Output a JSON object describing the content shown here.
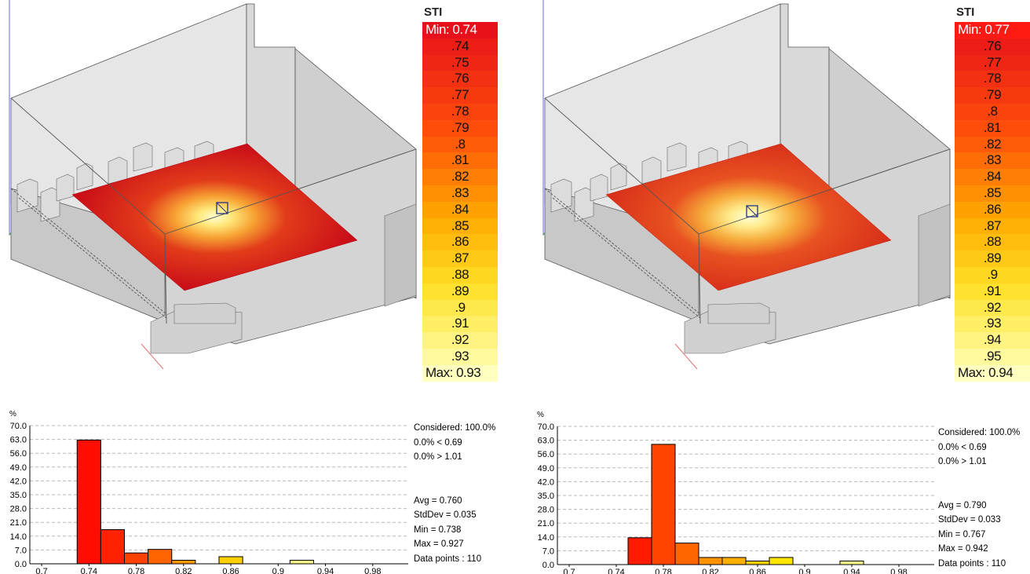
{
  "panels": [
    {
      "legend": {
        "title": "STI",
        "min_label": "Min:",
        "min_value": "0.74",
        "entries": [
          ".74",
          ".75",
          ".76",
          ".77",
          ".78",
          ".79",
          ".8",
          ".81",
          ".82",
          ".83",
          ".84",
          ".85",
          ".86",
          ".87",
          ".88",
          ".89",
          ".9",
          ".91",
          ".92",
          ".93"
        ],
        "max_label": "Max:",
        "max_value": "0.93"
      },
      "stats": {
        "considered": "Considered: 100.0%",
        "below": "0.0%  < 0.69",
        "above": "0.0%  > 1.01",
        "avg": "Avg = 0.760",
        "stddev": "StdDev = 0.035",
        "min": "Min = 0.738",
        "max": "Max = 0.927",
        "points": "Data points : 110"
      },
      "chart_data": {
        "type": "bar",
        "ylabel": "%",
        "ylim": [
          0,
          70
        ],
        "yticks": [
          "70.0",
          "63.0",
          "56.0",
          "49.0",
          "42.0",
          "35.0",
          "28.0",
          "21.0",
          "14.0",
          "7.0",
          "0.0"
        ],
        "xlim": [
          0.69,
          1.01
        ],
        "xticks": [
          "0.7",
          "0.74",
          "0.78",
          "0.82",
          "0.86",
          "0.9",
          "0.94",
          "0.98"
        ],
        "bin_width": 0.02,
        "bins": [
          {
            "x0": 0.73,
            "value": 62.7,
            "color": "#ff0d00"
          },
          {
            "x0": 0.75,
            "value": 17.3,
            "color": "#ff2200"
          },
          {
            "x0": 0.77,
            "value": 5.5,
            "color": "#ff4200"
          },
          {
            "x0": 0.79,
            "value": 7.3,
            "color": "#ff6400"
          },
          {
            "x0": 0.81,
            "value": 1.8,
            "color": "#ff9a00"
          },
          {
            "x0": 0.85,
            "value": 3.6,
            "color": "#ffcf00"
          },
          {
            "x0": 0.91,
            "value": 1.8,
            "color": "#ffff8a"
          }
        ]
      }
    },
    {
      "legend": {
        "title": "STI",
        "min_label": "Min:",
        "min_value": "0.77",
        "entries": [
          ".76",
          ".77",
          ".78",
          ".79",
          ".8",
          ".81",
          ".82",
          ".83",
          ".84",
          ".85",
          ".86",
          ".87",
          ".88",
          ".89",
          ".9",
          ".91",
          ".92",
          ".93",
          ".94",
          ".95"
        ],
        "max_label": "Max:",
        "max_value": "0.94"
      },
      "stats": {
        "considered": "Considered: 100.0%",
        "below": "0.0%  < 0.69",
        "above": "0.0%  > 1.01",
        "avg": "Avg = 0.790",
        "stddev": "StdDev = 0.033",
        "min": "Min = 0.767",
        "max": "Max = 0.942",
        "points": "Data points : 110"
      },
      "chart_data": {
        "type": "bar",
        "ylabel": "%",
        "ylim": [
          0,
          70
        ],
        "yticks": [
          "70.0",
          "63.0",
          "56.0",
          "49.0",
          "42.0",
          "35.0",
          "28.0",
          "21.0",
          "14.0",
          "7.0",
          "0.0"
        ],
        "xlim": [
          0.69,
          1.01
        ],
        "xticks": [
          "0.7",
          "0.74",
          "0.78",
          "0.82",
          "0.86",
          "0.9",
          "0.94",
          "0.98"
        ],
        "bin_width": 0.02,
        "bins": [
          {
            "x0": 0.75,
            "value": 13.6,
            "color": "#ff1a00"
          },
          {
            "x0": 0.77,
            "value": 60.9,
            "color": "#ff4400"
          },
          {
            "x0": 0.79,
            "value": 10.9,
            "color": "#ff6600"
          },
          {
            "x0": 0.81,
            "value": 3.6,
            "color": "#ff9400"
          },
          {
            "x0": 0.83,
            "value": 3.6,
            "color": "#ffb000"
          },
          {
            "x0": 0.85,
            "value": 1.8,
            "color": "#ffcf00"
          },
          {
            "x0": 0.87,
            "value": 3.6,
            "color": "#ffe500"
          },
          {
            "x0": 0.93,
            "value": 1.8,
            "color": "#ffff8a"
          }
        ]
      }
    }
  ]
}
